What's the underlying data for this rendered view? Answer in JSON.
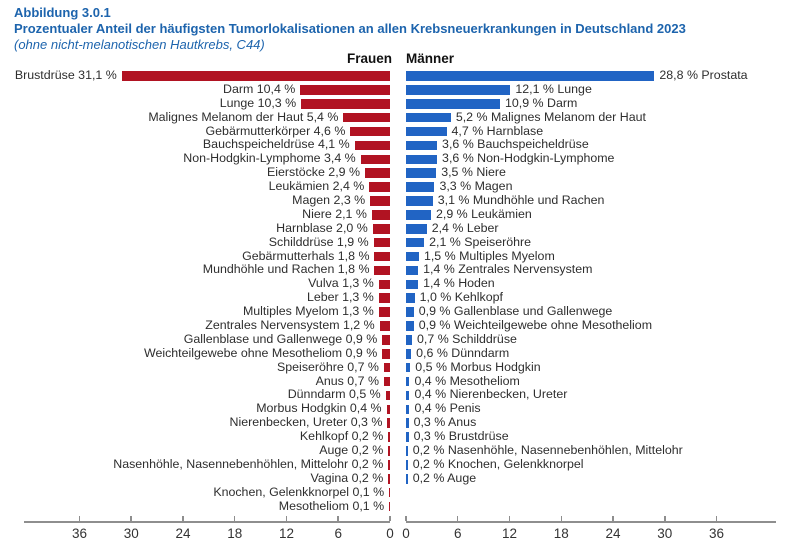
{
  "header": {
    "figure_number": "Abbildung 3.0.1",
    "title": "Prozentualer Anteil der häufigsten Tumorlokalisationen an allen Krebsneuerkrankungen in Deutschland 2023",
    "subtitle": "(ohne nicht-melanotischen Hautkrebs, C44)"
  },
  "colors": {
    "bar_frauen": "#b11322",
    "bar_maenner": "#2164c4",
    "header_text": "#1d64ad",
    "axis_line": "#8e8e8e",
    "tick_text": "#333333"
  },
  "chart_data": {
    "type": "bar",
    "variant": "diverging-horizontal",
    "unit": "%",
    "decimal_separator": ",",
    "left_group": "Frauen",
    "right_group": "Männer",
    "axis": {
      "ticks": [
        0,
        6,
        12,
        18,
        24,
        30,
        36
      ],
      "max": 36,
      "grid": false
    },
    "groups": {
      "frauen": {
        "name": "Frauen",
        "items": [
          {
            "label": "Brustdrüse",
            "value": 31.1
          },
          {
            "label": "Darm",
            "value": 10.4
          },
          {
            "label": "Lunge",
            "value": 10.3
          },
          {
            "label": "Malignes Melanom der Haut",
            "value": 5.4
          },
          {
            "label": "Gebärmutterkörper",
            "value": 4.6
          },
          {
            "label": "Bauchspeicheldrüse",
            "value": 4.1
          },
          {
            "label": "Non-Hodgkin-Lymphome",
            "value": 3.4
          },
          {
            "label": "Eierstöcke",
            "value": 2.9
          },
          {
            "label": "Leukämien",
            "value": 2.4
          },
          {
            "label": "Magen",
            "value": 2.3
          },
          {
            "label": "Niere",
            "value": 2.1
          },
          {
            "label": "Harnblase",
            "value": 2.0
          },
          {
            "label": "Schilddrüse",
            "value": 1.9
          },
          {
            "label": "Gebärmutterhals",
            "value": 1.8
          },
          {
            "label": "Mundhöhle und Rachen",
            "value": 1.8
          },
          {
            "label": "Vulva",
            "value": 1.3
          },
          {
            "label": "Leber",
            "value": 1.3
          },
          {
            "label": "Multiples Myelom",
            "value": 1.3
          },
          {
            "label": "Zentrales Nervensystem",
            "value": 1.2
          },
          {
            "label": "Gallenblase und Gallenwege",
            "value": 0.9
          },
          {
            "label": "Weichteilgewebe ohne Mesotheliom",
            "value": 0.9
          },
          {
            "label": "Speiseröhre",
            "value": 0.7
          },
          {
            "label": "Anus",
            "value": 0.7
          },
          {
            "label": "Dünndarm",
            "value": 0.5
          },
          {
            "label": "Morbus Hodgkin",
            "value": 0.4
          },
          {
            "label": "Nierenbecken, Ureter",
            "value": 0.3
          },
          {
            "label": "Kehlkopf",
            "value": 0.2
          },
          {
            "label": "Auge",
            "value": 0.2
          },
          {
            "label": "Nasenhöhle, Nasennebenhöhlen, Mittelohr",
            "value": 0.2
          },
          {
            "label": "Vagina",
            "value": 0.2
          },
          {
            "label": "Knochen, Gelenkknorpel",
            "value": 0.1
          },
          {
            "label": "Mesotheliom",
            "value": 0.1
          }
        ]
      },
      "maenner": {
        "name": "Männer",
        "items": [
          {
            "label": "Prostata",
            "value": 28.8
          },
          {
            "label": "Lunge",
            "value": 12.1
          },
          {
            "label": "Darm",
            "value": 10.9
          },
          {
            "label": "Malignes Melanom der Haut",
            "value": 5.2
          },
          {
            "label": "Harnblase",
            "value": 4.7
          },
          {
            "label": "Bauchspeicheldrüse",
            "value": 3.6
          },
          {
            "label": "Non-Hodgkin-Lymphome",
            "value": 3.6
          },
          {
            "label": "Niere",
            "value": 3.5
          },
          {
            "label": "Magen",
            "value": 3.3
          },
          {
            "label": "Mundhöhle und Rachen",
            "value": 3.1
          },
          {
            "label": "Leukämien",
            "value": 2.9
          },
          {
            "label": "Leber",
            "value": 2.4
          },
          {
            "label": "Speiseröhre",
            "value": 2.1
          },
          {
            "label": "Multiples Myelom",
            "value": 1.5
          },
          {
            "label": "Zentrales Nervensystem",
            "value": 1.4
          },
          {
            "label": "Hoden",
            "value": 1.4
          },
          {
            "label": "Kehlkopf",
            "value": 1.0
          },
          {
            "label": "Gallenblase und Gallenwege",
            "value": 0.9
          },
          {
            "label": "Weichteilgewebe ohne Mesotheliom",
            "value": 0.9
          },
          {
            "label": "Schilddrüse",
            "value": 0.7
          },
          {
            "label": "Dünndarm",
            "value": 0.6
          },
          {
            "label": "Morbus Hodgkin",
            "value": 0.5
          },
          {
            "label": "Mesotheliom",
            "value": 0.4
          },
          {
            "label": "Nierenbecken, Ureter",
            "value": 0.4
          },
          {
            "label": "Penis",
            "value": 0.4
          },
          {
            "label": "Anus",
            "value": 0.3
          },
          {
            "label": "Brustdrüse",
            "value": 0.3
          },
          {
            "label": "Nasenhöhle, Nasennebenhöhlen, Mittelohr",
            "value": 0.2
          },
          {
            "label": "Knochen, Gelenkknorpel",
            "value": 0.2
          },
          {
            "label": "Auge",
            "value": 0.2
          }
        ]
      }
    }
  }
}
